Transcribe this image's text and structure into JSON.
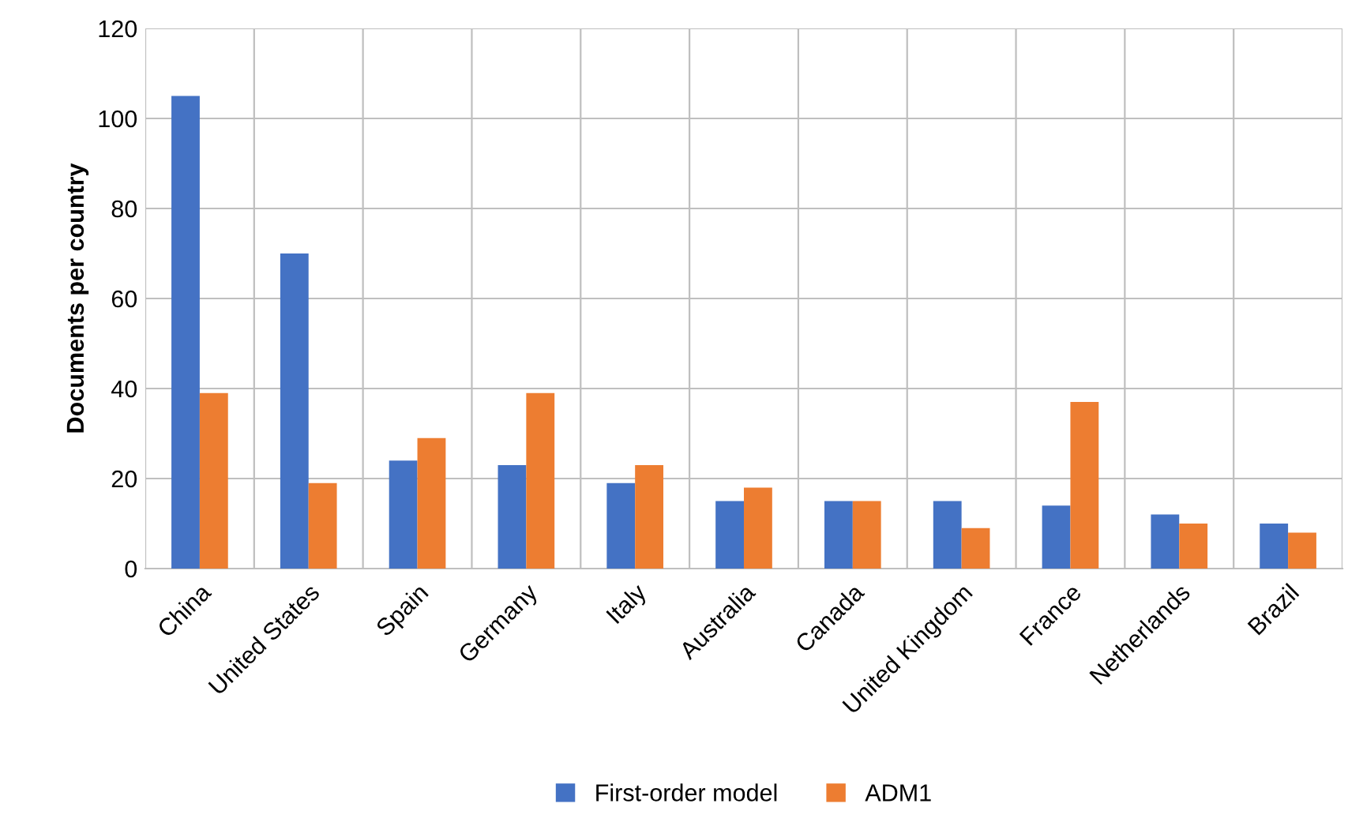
{
  "chart_data": {
    "type": "bar",
    "ylabel": "Documents per country",
    "categories": [
      "China",
      "United States",
      "Spain",
      "Germany",
      "Italy",
      "Australia",
      "Canada",
      "United Kingdom",
      "France",
      "Netherlands",
      "Brazil"
    ],
    "series": [
      {
        "name": "First-order model",
        "color": "#4472c4",
        "values": [
          105,
          70,
          24,
          23,
          19,
          15,
          15,
          15,
          14,
          12,
          10
        ]
      },
      {
        "name": "ADM1",
        "color": "#ed7d31",
        "values": [
          39,
          19,
          29,
          39,
          23,
          18,
          15,
          9,
          37,
          10,
          8
        ]
      }
    ],
    "ylim": [
      0,
      120
    ],
    "yticks": [
      0,
      20,
      40,
      60,
      80,
      100,
      120
    ],
    "grid": true,
    "legend": "bottom"
  }
}
